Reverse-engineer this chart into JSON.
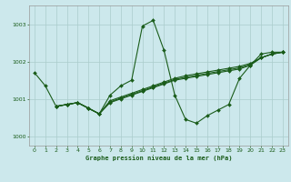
{
  "title": "Graphe pression niveau de la mer (hPa)",
  "bg_color": "#cce8ec",
  "grid_color": "#aacccc",
  "line_color": "#1a5c1a",
  "marker_color": "#1a5c1a",
  "xlim": [
    -0.5,
    23.5
  ],
  "ylim": [
    999.75,
    1003.5
  ],
  "yticks": [
    1000,
    1001,
    1002,
    1003
  ],
  "xticks": [
    0,
    1,
    2,
    3,
    4,
    5,
    6,
    7,
    8,
    9,
    10,
    11,
    12,
    13,
    14,
    15,
    16,
    17,
    18,
    19,
    20,
    21,
    22,
    23
  ],
  "s1_x": [
    0,
    1,
    2,
    3,
    4,
    5,
    6,
    7,
    8,
    9,
    10,
    11,
    12,
    13,
    14,
    15,
    16,
    17,
    18,
    19,
    20,
    21,
    22,
    23
  ],
  "s1_y": [
    1001.7,
    1001.35,
    1000.8,
    1000.85,
    1000.9,
    1000.75,
    1000.6,
    1001.1,
    1001.35,
    1001.5,
    1002.95,
    1003.1,
    1002.3,
    1001.1,
    1000.45,
    1000.35,
    1000.55,
    1000.7,
    1000.85,
    1001.55,
    1001.9,
    1002.2,
    1002.25,
    1002.25
  ],
  "s2_x": [
    2,
    3,
    4,
    5,
    6,
    7,
    8,
    9,
    10,
    11,
    12,
    13,
    14,
    15,
    16,
    17,
    18,
    19,
    20,
    21,
    22,
    23
  ],
  "s2_y": [
    1000.8,
    1000.85,
    1000.9,
    1000.75,
    1000.6,
    1000.9,
    1001.0,
    1001.1,
    1001.2,
    1001.3,
    1001.4,
    1001.5,
    1001.55,
    1001.6,
    1001.65,
    1001.7,
    1001.75,
    1001.8,
    1001.9,
    1002.1,
    1002.2,
    1002.25
  ],
  "s3_x": [
    2,
    3,
    4,
    5,
    6,
    7,
    8,
    9,
    10,
    11,
    12,
    13,
    14,
    15,
    16,
    17,
    18,
    19,
    20,
    21,
    22,
    23
  ],
  "s3_y": [
    1000.8,
    1000.85,
    1000.9,
    1000.75,
    1000.6,
    1000.95,
    1001.05,
    1001.15,
    1001.25,
    1001.35,
    1001.45,
    1001.55,
    1001.62,
    1001.67,
    1001.72,
    1001.77,
    1001.82,
    1001.87,
    1001.95,
    1002.1,
    1002.2,
    1002.25
  ],
  "s4_x": [
    2,
    3,
    4,
    5,
    6,
    7,
    8,
    9,
    10,
    11,
    12,
    13,
    14,
    15,
    16,
    17,
    18,
    19,
    20,
    21,
    22,
    23
  ],
  "s4_y": [
    1000.8,
    1000.85,
    1000.9,
    1000.75,
    1000.6,
    1000.92,
    1001.02,
    1001.12,
    1001.22,
    1001.32,
    1001.42,
    1001.52,
    1001.58,
    1001.63,
    1001.68,
    1001.73,
    1001.78,
    1001.83,
    1001.92,
    1002.1,
    1002.2,
    1002.25
  ]
}
